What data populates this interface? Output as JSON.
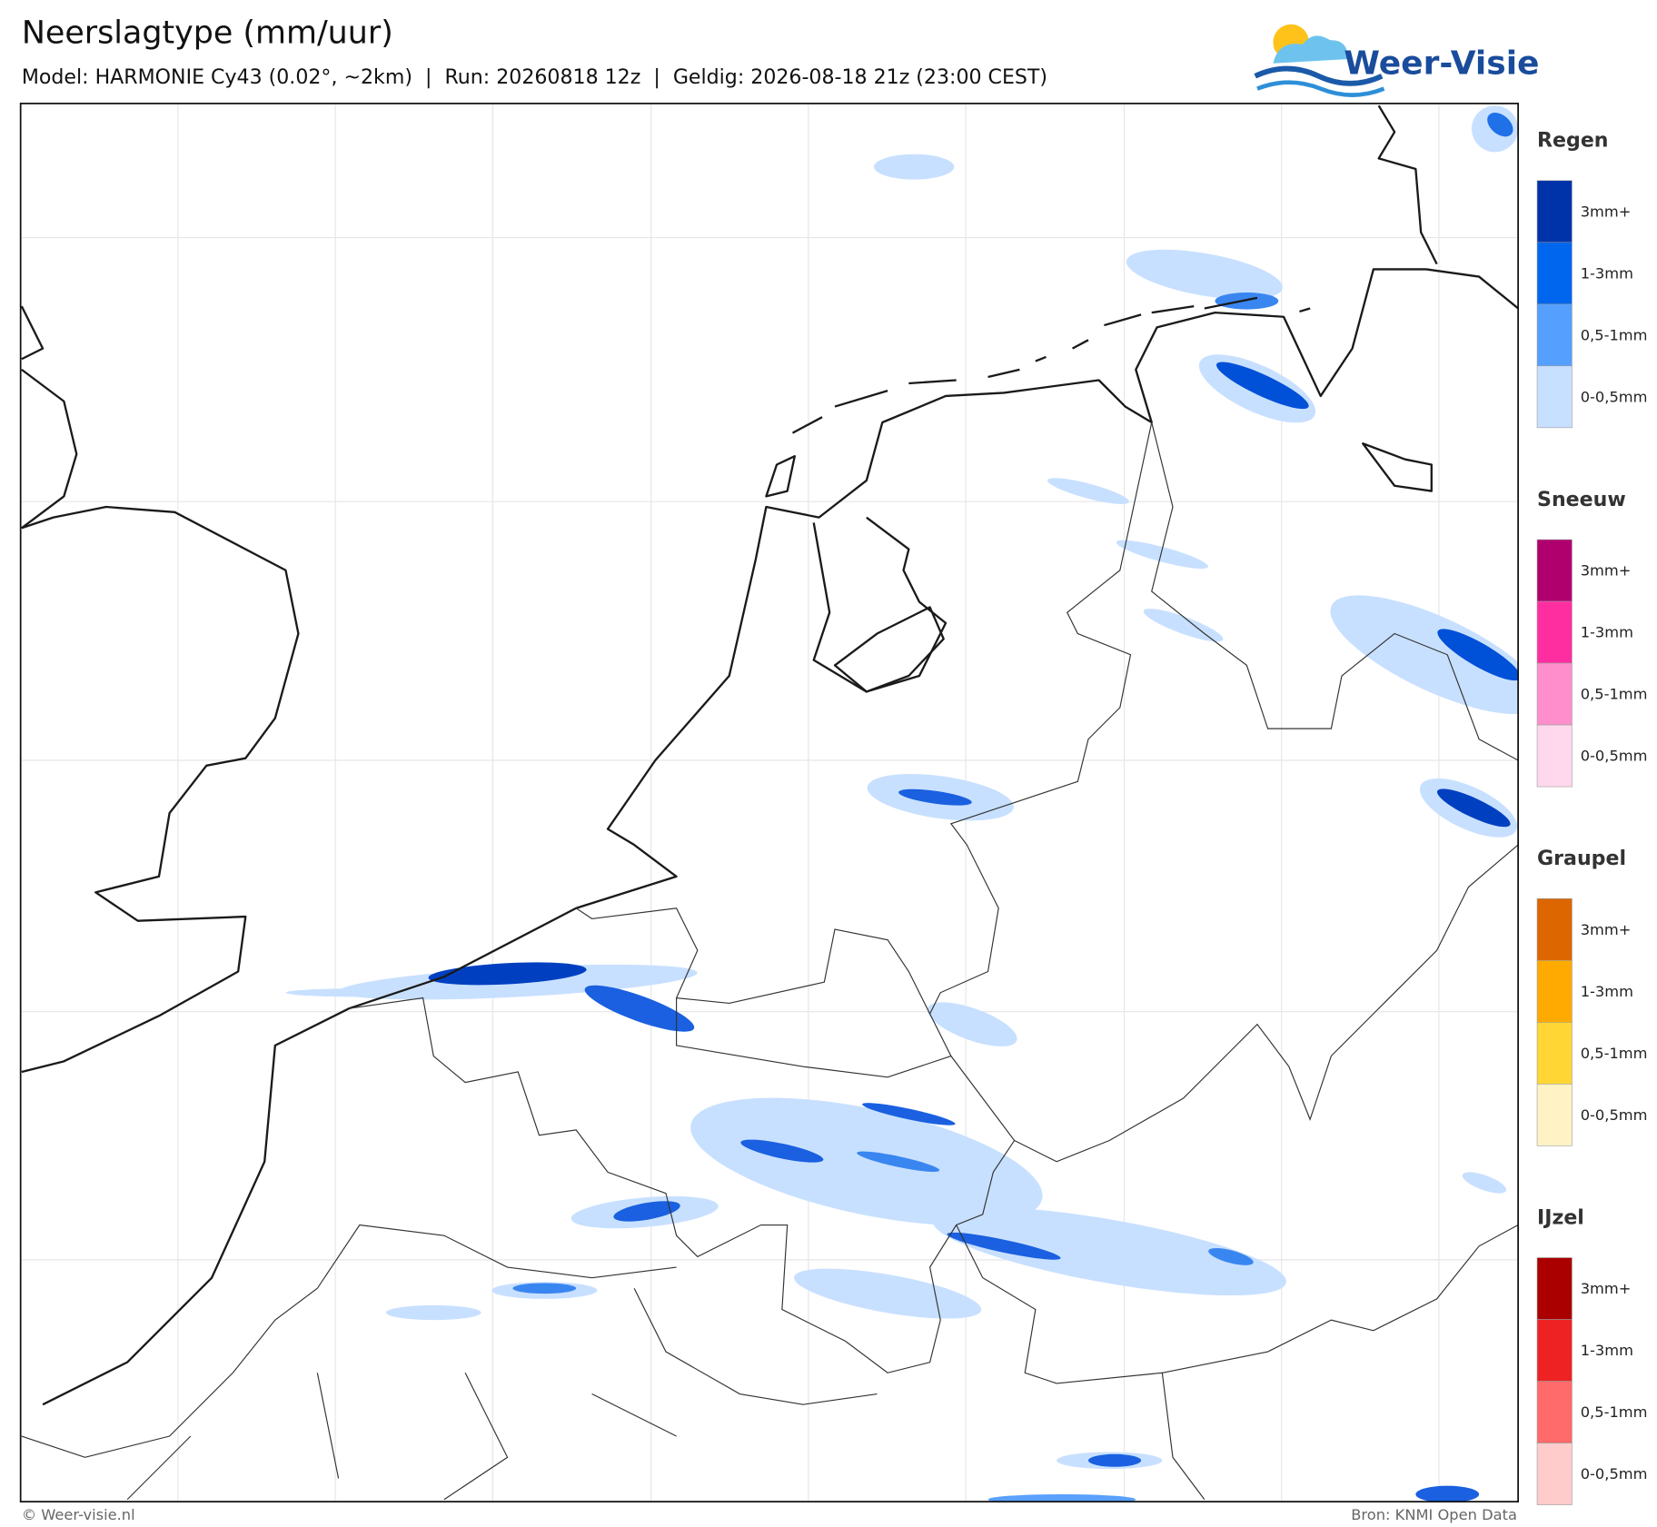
{
  "header": {
    "title": "Neerslagtype (mm/uur)",
    "subtitle": "Model: HARMONIE Cy43 (0.02°, ~2km)  |  Run: 20260818 12z  |  Geldig: 2026-08-18 21z (23:00 CEST)",
    "logo": "Weer-Visie"
  },
  "legend": [
    {
      "title": "Regen",
      "items": [
        {
          "label": "3mm+",
          "color": "#0033aa"
        },
        {
          "label": "1-3mm",
          "color": "#0066ee"
        },
        {
          "label": "0,5-1mm",
          "color": "#55a0ff"
        },
        {
          "label": "0-0,5mm",
          "color": "#c8e0ff"
        }
      ]
    },
    {
      "title": "Sneeuw",
      "items": [
        {
          "label": "3mm+",
          "color": "#b0006e"
        },
        {
          "label": "1-3mm",
          "color": "#ff2ea0"
        },
        {
          "label": "0,5-1mm",
          "color": "#ff8fcc"
        },
        {
          "label": "0-0,5mm",
          "color": "#ffd8ee"
        }
      ]
    },
    {
      "title": "Graupel",
      "items": [
        {
          "label": "3mm+",
          "color": "#dd6600"
        },
        {
          "label": "1-3mm",
          "color": "#ffaa00"
        },
        {
          "label": "0,5-1mm",
          "color": "#ffd633"
        },
        {
          "label": "0-0,5mm",
          "color": "#fff2c4"
        }
      ]
    },
    {
      "title": "IJzel",
      "items": [
        {
          "label": "3mm+",
          "color": "#aa0000"
        },
        {
          "label": "1-3mm",
          "color": "#ee2222"
        },
        {
          "label": "0,5-1mm",
          "color": "#ff6a6a"
        },
        {
          "label": "0-0,5mm",
          "color": "#ffcccc"
        }
      ]
    }
  ],
  "footer": {
    "left": "© Weer-visie.nl",
    "right": "Bron: KNMI Open Data"
  }
}
